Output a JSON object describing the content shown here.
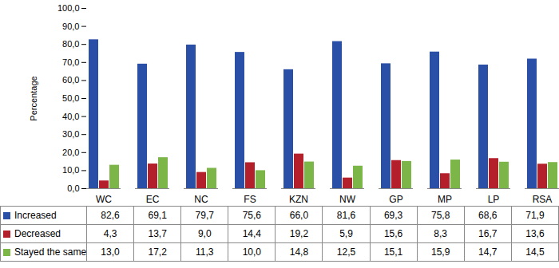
{
  "chart_data": {
    "type": "bar",
    "y_label": "Percentage",
    "categories": [
      "WC",
      "EC",
      "NC",
      "FS",
      "KZN",
      "NW",
      "GP",
      "MP",
      "LP",
      "RSA"
    ],
    "series": [
      {
        "name": "Increased",
        "color": "#2a4fa6",
        "values": [
          82.6,
          69.1,
          79.7,
          75.6,
          66.0,
          81.6,
          69.3,
          75.8,
          68.6,
          71.9
        ],
        "value_labels": [
          "82,6",
          "69,1",
          "79,7",
          "75,6",
          "66,0",
          "81,6",
          "69,3",
          "75,8",
          "68,6",
          "71,9"
        ]
      },
      {
        "name": "Decreased",
        "color": "#b3202c",
        "values": [
          4.3,
          13.7,
          9.0,
          14.4,
          19.2,
          5.9,
          15.6,
          8.3,
          16.7,
          13.6
        ],
        "value_labels": [
          "4,3",
          "13,7",
          "9,0",
          "14,4",
          "19,2",
          "5,9",
          "15,6",
          "8,3",
          "16,7",
          "13,6"
        ]
      },
      {
        "name": "Stayed the same",
        "color": "#7cb648",
        "values": [
          13.0,
          17.2,
          11.3,
          10.0,
          14.8,
          12.5,
          15.1,
          15.9,
          14.7,
          14.5
        ],
        "value_labels": [
          "13,0",
          "17,2",
          "11,3",
          "10,0",
          "14,8",
          "12,5",
          "15,1",
          "15,9",
          "14,7",
          "14,5"
        ]
      }
    ],
    "ylim": [
      0,
      100
    ],
    "yticks": [
      {
        "value": 0,
        "label": "0,0"
      },
      {
        "value": 10,
        "label": "10,0"
      },
      {
        "value": 20,
        "label": "20,0"
      },
      {
        "value": 30,
        "label": "30,0"
      },
      {
        "value": 40,
        "label": "40,0"
      },
      {
        "value": 50,
        "label": "50,0"
      },
      {
        "value": 60,
        "label": "60,0"
      },
      {
        "value": 70,
        "label": "70,0"
      },
      {
        "value": 80,
        "label": "80,0"
      },
      {
        "value": 90,
        "label": "90,0"
      },
      {
        "value": 100,
        "label": "100,0"
      }
    ],
    "grid": false
  }
}
